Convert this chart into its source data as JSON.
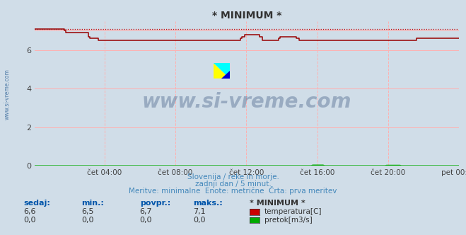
{
  "title": "* MINIMUM *",
  "bg_color": "#d0dde8",
  "plot_bg_color": "#d0dde8",
  "grid_color_h": "#ffb0b0",
  "grid_color_v": "#ffb0b0",
  "x_labels": [
    "čet 04:00",
    "čet 08:00",
    "čet 12:00",
    "čet 16:00",
    "čet 20:00",
    "pet 00:00"
  ],
  "x_ticks_norm": [
    0.1667,
    0.3333,
    0.5,
    0.6667,
    0.8333,
    1.0
  ],
  "y_ticks": [
    0,
    2,
    4,
    6
  ],
  "ylim": [
    0,
    7.5
  ],
  "subtitle1": "Slovenija / reke in morje.",
  "subtitle2": "zadnji dan / 5 minut.",
  "subtitle3": "Meritve: minimalne  Enote: metrične  Črta: prva meritev",
  "table_headers": [
    "sedaj:",
    "min.:",
    "povpr.:",
    "maks.:",
    "* MINIMUM *"
  ],
  "table_row1_vals": [
    "6,6",
    "6,5",
    "6,7",
    "7,1"
  ],
  "table_row2_vals": [
    "0,0",
    "0,0",
    "0,0",
    "0,0"
  ],
  "legend_label1": "temperatura[C]",
  "legend_label2": "pretok[m3/s]",
  "legend_color1": "#cc0000",
  "legend_color2": "#00aa00",
  "temp_color": "#990000",
  "flow_color": "#00aa00",
  "dashed_color": "#cc0000",
  "text_color": "#4488bb",
  "title_color": "#333333",
  "watermark_text": "www.si-vreme.com",
  "watermark_color": "#1a3a6a",
  "side_label": "www.si-vreme.com",
  "n_points": 288,
  "temp_data": [
    7.1,
    7.1,
    7.1,
    7.1,
    7.1,
    7.1,
    7.1,
    7.1,
    7.1,
    7.1,
    7.1,
    7.1,
    7.1,
    7.1,
    7.1,
    7.1,
    7.1,
    7.1,
    7.1,
    7.1,
    7.0,
    6.9,
    6.9,
    6.9,
    6.9,
    6.9,
    6.9,
    6.9,
    6.9,
    6.9,
    6.9,
    6.9,
    6.9,
    6.9,
    6.9,
    6.9,
    6.7,
    6.6,
    6.6,
    6.6,
    6.6,
    6.6,
    6.6,
    6.5,
    6.5,
    6.5,
    6.5,
    6.5,
    6.5,
    6.5,
    6.5,
    6.5,
    6.5,
    6.5,
    6.5,
    6.5,
    6.5,
    6.5,
    6.5,
    6.5,
    6.5,
    6.5,
    6.5,
    6.5,
    6.5,
    6.5,
    6.5,
    6.5,
    6.5,
    6.5,
    6.5,
    6.5,
    6.5,
    6.5,
    6.5,
    6.5,
    6.5,
    6.5,
    6.5,
    6.5,
    6.5,
    6.5,
    6.5,
    6.5,
    6.5,
    6.5,
    6.5,
    6.5,
    6.5,
    6.5,
    6.5,
    6.5,
    6.5,
    6.5,
    6.5,
    6.5,
    6.5,
    6.5,
    6.5,
    6.5,
    6.5,
    6.5,
    6.5,
    6.5,
    6.5,
    6.5,
    6.5,
    6.5,
    6.5,
    6.5,
    6.5,
    6.5,
    6.5,
    6.5,
    6.5,
    6.5,
    6.5,
    6.5,
    6.5,
    6.5,
    6.5,
    6.5,
    6.5,
    6.5,
    6.5,
    6.5,
    6.5,
    6.5,
    6.5,
    6.5,
    6.5,
    6.5,
    6.5,
    6.5,
    6.5,
    6.5,
    6.5,
    6.5,
    6.5,
    6.6,
    6.7,
    6.7,
    6.8,
    6.8,
    6.8,
    6.8,
    6.8,
    6.8,
    6.8,
    6.8,
    6.8,
    6.8,
    6.7,
    6.7,
    6.5,
    6.5,
    6.5,
    6.5,
    6.5,
    6.5,
    6.5,
    6.5,
    6.5,
    6.5,
    6.5,
    6.6,
    6.7,
    6.7,
    6.7,
    6.7,
    6.7,
    6.7,
    6.7,
    6.7,
    6.7,
    6.7,
    6.7,
    6.6,
    6.6,
    6.5,
    6.5,
    6.5,
    6.5,
    6.5,
    6.5,
    6.5,
    6.5,
    6.5,
    6.5,
    6.5,
    6.5,
    6.5,
    6.5,
    6.5,
    6.5,
    6.5,
    6.5,
    6.5,
    6.5,
    6.5,
    6.5,
    6.5,
    6.5,
    6.5,
    6.5,
    6.5,
    6.5,
    6.5,
    6.5,
    6.5,
    6.5,
    6.5,
    6.5,
    6.5,
    6.5,
    6.5,
    6.5,
    6.5,
    6.5,
    6.5,
    6.5,
    6.5,
    6.5,
    6.5,
    6.5,
    6.5,
    6.5,
    6.5,
    6.5,
    6.5,
    6.5,
    6.5,
    6.5,
    6.5,
    6.5,
    6.5,
    6.5,
    6.5,
    6.5,
    6.5,
    6.5,
    6.5,
    6.5,
    6.5,
    6.5,
    6.5,
    6.5,
    6.5,
    6.5,
    6.5,
    6.5,
    6.5,
    6.5,
    6.5,
    6.5,
    6.5,
    6.5,
    6.5,
    6.6,
    6.6,
    6.6,
    6.6,
    6.6,
    6.6,
    6.6,
    6.6,
    6.6,
    6.6,
    6.6,
    6.6,
    6.6,
    6.6,
    6.6,
    6.6,
    6.6,
    6.6
  ]
}
